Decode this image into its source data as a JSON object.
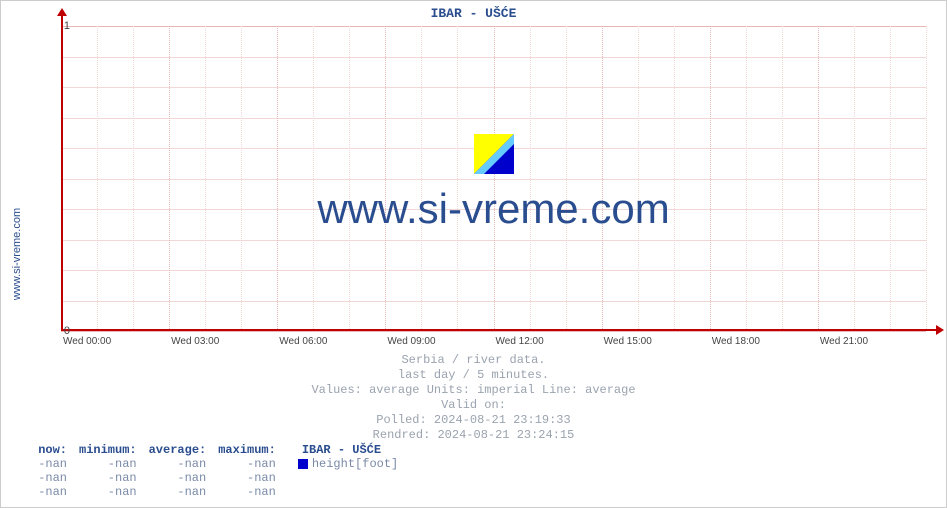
{
  "chart": {
    "title": "IBAR -  UŠĆE",
    "y_axis_side_label": "www.si-vreme.com",
    "watermark_text": "www.si-vreme.com",
    "plot_bg": "#ffffff",
    "grid_minor_color": "#f2d7d7",
    "grid_major_color": "#e8b8b8",
    "axis_color": "#c00000",
    "title_color": "#2a4d8f",
    "ylim": [
      0,
      1
    ],
    "yticks": [
      {
        "v": 0,
        "label": "0"
      },
      {
        "v": 1,
        "label": "1"
      }
    ],
    "xticks": [
      {
        "pos": 0.0,
        "label": "Wed 00:00"
      },
      {
        "pos": 0.125,
        "label": "Wed 03:00"
      },
      {
        "pos": 0.25,
        "label": "Wed 06:00"
      },
      {
        "pos": 0.375,
        "label": "Wed 09:00"
      },
      {
        "pos": 0.5,
        "label": "Wed 12:00"
      },
      {
        "pos": 0.625,
        "label": "Wed 15:00"
      },
      {
        "pos": 0.75,
        "label": "Wed 18:00"
      },
      {
        "pos": 0.875,
        "label": "Wed 21:00"
      }
    ],
    "minor_per_major": 3
  },
  "meta": {
    "line1": "Serbia / river data.",
    "line2": "last day / 5 minutes.",
    "line3": "Values: average  Units: imperial  Line: average",
    "line4": "Valid on:",
    "line5": "Polled: 2024-08-21 23:19:33",
    "line6": "Rendred: 2024-08-21 23:24:15"
  },
  "stats": {
    "headers": {
      "now": "now:",
      "minimum": "minimum:",
      "average": "average:",
      "maximum": "maximum:",
      "station": "IBAR -  UŠĆE"
    },
    "legend": {
      "color": "#0000cc",
      "text": "height[foot]"
    },
    "rows": [
      {
        "now": "-nan",
        "minimum": "-nan",
        "average": "-nan",
        "maximum": "-nan"
      },
      {
        "now": "-nan",
        "minimum": "-nan",
        "average": "-nan",
        "maximum": "-nan"
      },
      {
        "now": "-nan",
        "minimum": "-nan",
        "average": "-nan",
        "maximum": "-nan"
      }
    ]
  }
}
